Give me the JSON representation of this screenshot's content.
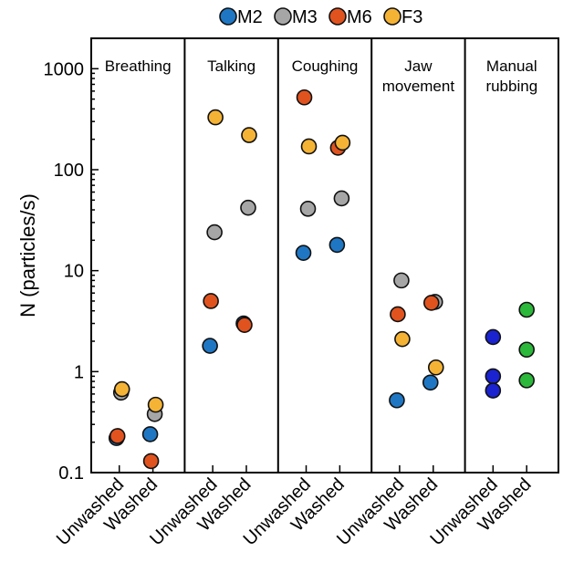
{
  "chart_data": {
    "type": "scatter",
    "ylabel": "N (particles/s)",
    "yscale": "log",
    "ylim": [
      0.1,
      2000
    ],
    "yticks": [
      0.1,
      1,
      10,
      100,
      1000
    ],
    "ytick_labels": [
      "0.1",
      "1",
      "10",
      "100",
      "1000"
    ],
    "grid": false,
    "legend_position": "top",
    "legend": [
      {
        "name": "M2",
        "color": "#1f77c4"
      },
      {
        "name": "M3",
        "color": "#a6a6a6"
      },
      {
        "name": "M6",
        "color": "#e0531f"
      },
      {
        "name": "F3",
        "color": "#f5b335"
      }
    ],
    "groups": [
      "Unwashed",
      "Washed"
    ],
    "panels": [
      {
        "title": "Breathing",
        "points": [
          {
            "series": "M2",
            "group": "Unwashed",
            "y": 0.22
          },
          {
            "series": "M3",
            "group": "Unwashed",
            "y": 0.62
          },
          {
            "series": "M6",
            "group": "Unwashed",
            "y": 0.23
          },
          {
            "series": "F3",
            "group": "Unwashed",
            "y": 0.67
          },
          {
            "series": "M2",
            "group": "Washed",
            "y": 0.24
          },
          {
            "series": "M3",
            "group": "Washed",
            "y": 0.38
          },
          {
            "series": "M6",
            "group": "Washed",
            "y": 0.13
          },
          {
            "series": "F3",
            "group": "Washed",
            "y": 0.47
          }
        ]
      },
      {
        "title": "Talking",
        "points": [
          {
            "series": "M2",
            "group": "Unwashed",
            "y": 1.8
          },
          {
            "series": "M3",
            "group": "Unwashed",
            "y": 24
          },
          {
            "series": "M6",
            "group": "Unwashed",
            "y": 5.0
          },
          {
            "series": "F3",
            "group": "Unwashed",
            "y": 330
          },
          {
            "series": "M3",
            "group": "Washed",
            "y": 42
          },
          {
            "series": "M2",
            "group": "Washed",
            "y": 3.0
          },
          {
            "series": "M6",
            "group": "Washed",
            "y": 2.9
          },
          {
            "series": "F3",
            "group": "Washed",
            "y": 220
          }
        ]
      },
      {
        "title": "Coughing",
        "points": [
          {
            "series": "M2",
            "group": "Unwashed",
            "y": 15
          },
          {
            "series": "M3",
            "group": "Unwashed",
            "y": 41
          },
          {
            "series": "M6",
            "group": "Unwashed",
            "y": 520
          },
          {
            "series": "F3",
            "group": "Unwashed",
            "y": 170
          },
          {
            "series": "M2",
            "group": "Washed",
            "y": 18
          },
          {
            "series": "M3",
            "group": "Washed",
            "y": 52
          },
          {
            "series": "M6",
            "group": "Washed",
            "y": 165
          },
          {
            "series": "F3",
            "group": "Washed",
            "y": 185
          }
        ]
      },
      {
        "title_lines": [
          "Jaw",
          "movement"
        ],
        "points": [
          {
            "series": "M2",
            "group": "Unwashed",
            "y": 0.52
          },
          {
            "series": "M3",
            "group": "Unwashed",
            "y": 8.0
          },
          {
            "series": "M6",
            "group": "Unwashed",
            "y": 3.7
          },
          {
            "series": "F3",
            "group": "Unwashed",
            "y": 2.1
          },
          {
            "series": "M2",
            "group": "Washed",
            "y": 0.78
          },
          {
            "series": "M3",
            "group": "Washed",
            "y": 4.9
          },
          {
            "series": "M6",
            "group": "Washed",
            "y": 4.8
          },
          {
            "series": "F3",
            "group": "Washed",
            "y": 1.1
          }
        ]
      },
      {
        "title_lines": [
          "Manual",
          "rubbing"
        ],
        "points": [
          {
            "group": "Unwashed",
            "y": 2.2,
            "color": "#1a23cf"
          },
          {
            "group": "Unwashed",
            "y": 0.9,
            "color": "#1a23cf"
          },
          {
            "group": "Unwashed",
            "y": 0.65,
            "color": "#1a23cf"
          },
          {
            "group": "Washed",
            "y": 4.1,
            "color": "#2cb83a"
          },
          {
            "group": "Washed",
            "y": 1.65,
            "color": "#2cb83a"
          },
          {
            "group": "Washed",
            "y": 0.82,
            "color": "#2cb83a"
          }
        ]
      }
    ]
  }
}
